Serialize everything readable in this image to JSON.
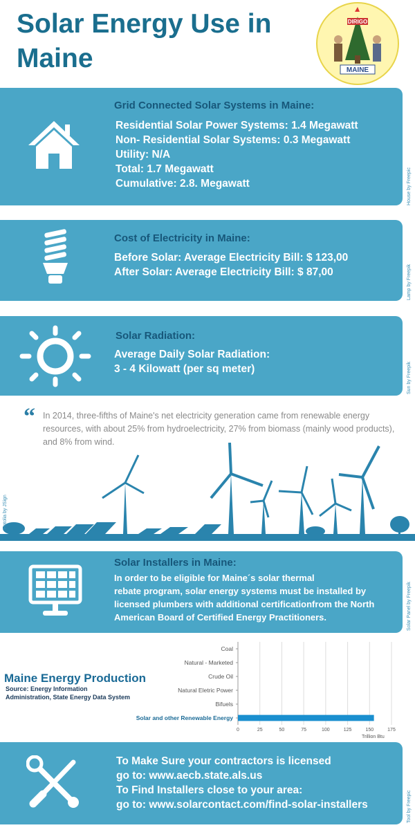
{
  "header": {
    "title": "Solar Energy Use in Maine"
  },
  "seal": {
    "motto": "DIRIGO",
    "name": "MAINE"
  },
  "sections": [
    {
      "heading": "Grid Connected Solar Systems in Maine:",
      "lines": [
        "Residential Solar Power Systems: 1.4 Megawatt",
        "Non- Residential Solar Systems: 0.3 Megawatt",
        "Utility: N/A",
        "Total: 1.7 Megawatt",
        "Cumulative: 2.8. Megawatt"
      ],
      "credit": "House by Freepic"
    },
    {
      "heading": "Cost of Electricity in Maine:",
      "lines": [
        "Before Solar: Average Electricity Bill: $ 123,00",
        "After Solar: Average Electricity Bill: $ 87,00"
      ],
      "credit": "Lamp by Freepik"
    },
    {
      "heading": "Solar Radiation:",
      "lines": [
        "Average Daily Solar Radiation:",
        "3 - 4 Kilowatt (per sq meter)"
      ],
      "credit": "Sun by Freepik"
    },
    {
      "heading": "Solar Installers in Maine:",
      "lines": [
        "In order to be eligible for Maine´s solar thermal",
        "rebate program, solar energy systems must be installed by",
        "licensed plumbers with additional certificationfrom the North",
        "American Board of Certified Energy Practitioners."
      ],
      "credit": "Solar Panel  by Freepik"
    }
  ],
  "quote": {
    "text": "In 2014, three-fifths of Maine's net electricity generation came from renewable energy resources, with about 25% from hydroelectricity, 27%  from biomass (mainly wood products), and 8% from wind.",
    "credit": "Fotolia by JSign"
  },
  "chart_data": {
    "type": "hbar",
    "title": "Maine Energy Production",
    "subtitle": [
      "Source: Energy Information",
      "Administration, State Energy Data System"
    ],
    "categories": [
      "Coal",
      "Natural - Marketed",
      "Crude Oil",
      "Natural Eletric Power",
      "Bifuels",
      "Solar and other Renewable Energy"
    ],
    "values": [
      0,
      0,
      0,
      0,
      0,
      155
    ],
    "color": "#1a8fcf",
    "xlim": [
      0,
      175
    ],
    "xticks": [
      0,
      25,
      50,
      75,
      100,
      125,
      150,
      175
    ],
    "x_label": "Trillion Btu",
    "grid": true
  },
  "footer": {
    "lines": [
      "To Make Sure your contractors is licensed",
      "go to: www.aecb.state.als.us",
      "To Find Installers close to your area:",
      "go to: www.solarcontact.com/find-solar-installers"
    ],
    "credit": "Tool by Freepic"
  }
}
